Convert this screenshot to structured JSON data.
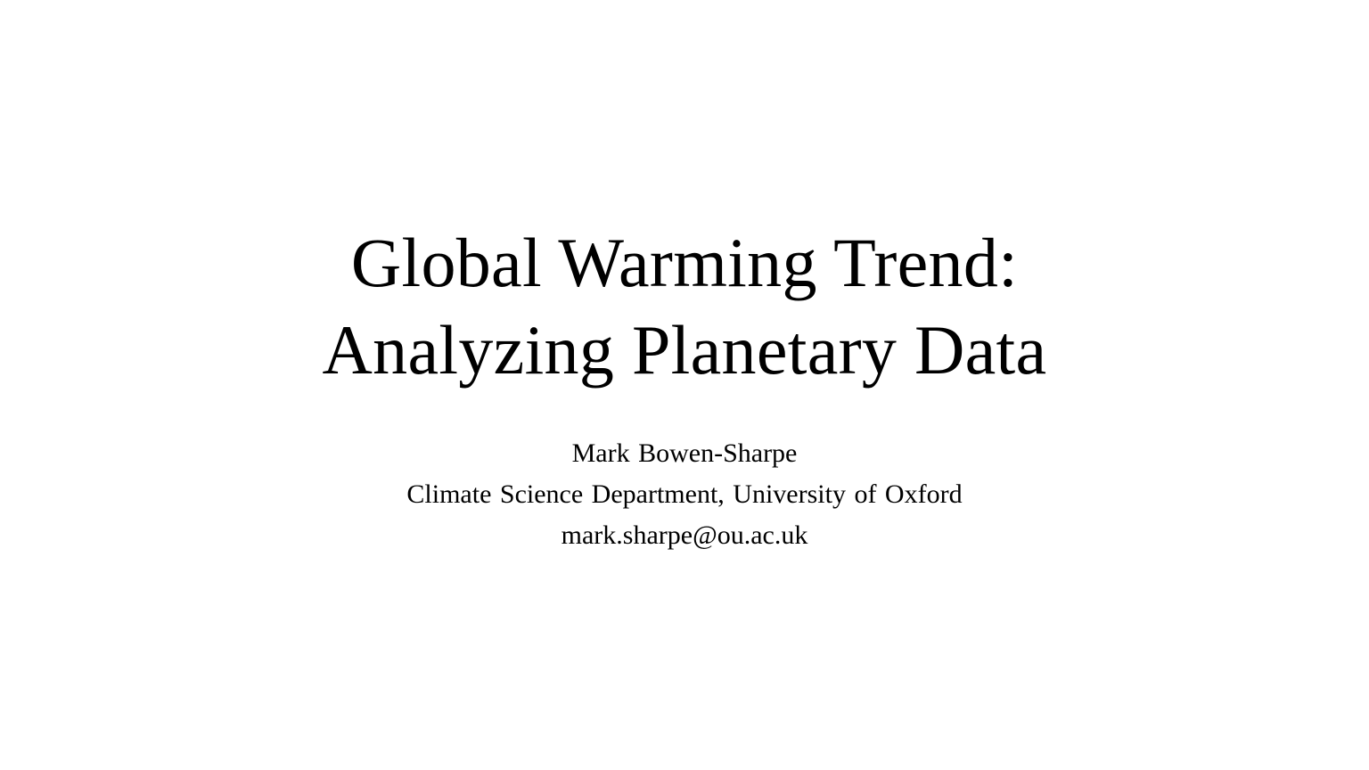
{
  "slide": {
    "title_lines": [
      "Global Warming Trend:",
      "Analyzing Planetary Data"
    ],
    "author": "Mark Bowen-Sharpe",
    "affiliation": "Climate Science Department, University of Oxford",
    "email": "mark.sharpe@ou.ac.uk"
  },
  "colors": {
    "background": "#ffffff",
    "text": "#000000"
  }
}
